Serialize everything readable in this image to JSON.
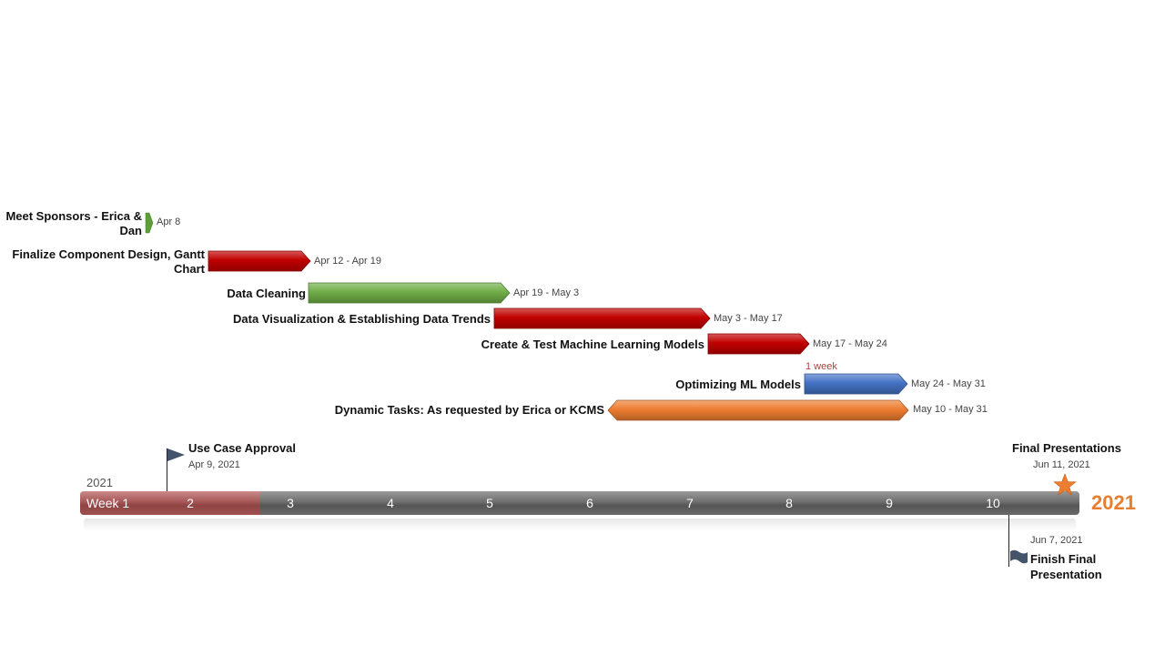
{
  "chart_data": {
    "type": "gantt",
    "year": "2021",
    "year_right": "2021",
    "weeks": [
      "Week 1",
      "2",
      "3",
      "4",
      "5",
      "6",
      "7",
      "8",
      "9",
      "10"
    ],
    "current_progress_weeks": 1.8,
    "tasks": [
      {
        "name": "Meet Sponsors - Erica & Dan",
        "label_lines": [
          "Meet Sponsors - Erica &",
          "Dan"
        ],
        "dates": "Apr 8",
        "start": "2021-04-08",
        "end": "2021-04-08",
        "color": "#70ad47",
        "milestone": true
      },
      {
        "name": "Finalize Component Design, Gantt Chart",
        "label_lines": [
          "Finalize Component Design, Gantt",
          "Chart"
        ],
        "dates": "Apr 12 - Apr 19",
        "start": "2021-04-12",
        "end": "2021-04-19",
        "color": "#c00000"
      },
      {
        "name": "Data Cleaning",
        "label_lines": [
          "Data Cleaning"
        ],
        "dates": "Apr 19 - May 3",
        "start": "2021-04-19",
        "end": "2021-05-03",
        "color": "#70ad47"
      },
      {
        "name": "Data Visualization & Establishing Data Trends",
        "label_lines": [
          "Data Visualization & Establishing Data Trends"
        ],
        "dates": "May 3 - May 17",
        "start": "2021-05-03",
        "end": "2021-05-17",
        "color": "#c00000"
      },
      {
        "name": "Create & Test Machine Learning Models",
        "label_lines": [
          "Create & Test Machine Learning Models"
        ],
        "dates": "May 17 - May 24",
        "start": "2021-05-17",
        "end": "2021-05-24",
        "color": "#c00000"
      },
      {
        "name": "Optimizing ML Models",
        "label_lines": [
          "Optimizing ML Models"
        ],
        "dates": "May 24 - May 31",
        "start": "2021-05-24",
        "end": "2021-05-31",
        "color": "#4472c4",
        "note": "1 week"
      },
      {
        "name": "Dynamic Tasks: As requested by Erica or KCMS",
        "label_lines": [
          "Dynamic Tasks: As requested by Erica or KCMS"
        ],
        "dates": "May 10 - May 31",
        "start": "2021-05-10",
        "end": "2021-05-31",
        "color": "#ed7d31",
        "double_arrow": true
      }
    ],
    "milestones": [
      {
        "name": "Use Case Approval",
        "title_lines": [
          "Use Case Approval"
        ],
        "date": "Apr 9, 2021",
        "position": "above",
        "icon": "flag-icon",
        "color": "#44546a"
      },
      {
        "name": "Final Presentations",
        "title_lines": [
          "Final Presentations"
        ],
        "date": "Jun 11, 2021",
        "position": "above",
        "icon": "star-icon",
        "color": "#ed7d31"
      },
      {
        "name": "Finish Final Presentation",
        "title_lines": [
          "Finish Final",
          "Presentation"
        ],
        "date": "Jun 7, 2021",
        "position": "below",
        "icon": "flag-icon",
        "color": "#44546a"
      }
    ]
  }
}
